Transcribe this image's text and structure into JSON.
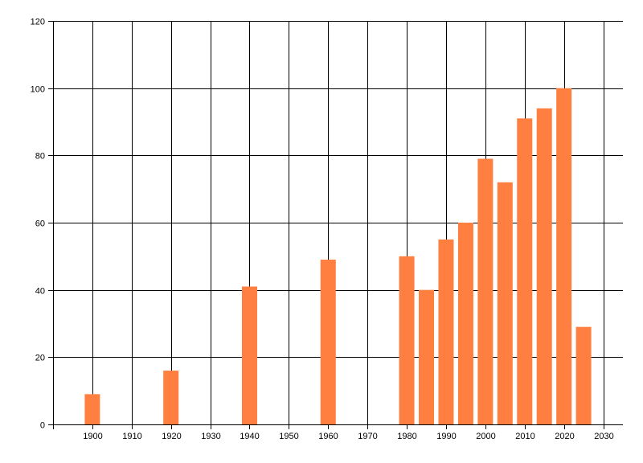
{
  "chart_data": {
    "type": "bar",
    "title": "",
    "xlabel": "",
    "ylabel": "",
    "x": [
      1900,
      1920,
      1940,
      1960,
      1980,
      1985,
      1990,
      1995,
      2000,
      2005,
      2010,
      2015,
      2020,
      2025
    ],
    "values": [
      9,
      16,
      41,
      49,
      50,
      40,
      55,
      60,
      79,
      72,
      91,
      94,
      100,
      29
    ],
    "xlim": [
      1890,
      2035
    ],
    "ylim": [
      0,
      120
    ],
    "xticks": [
      1900,
      1910,
      1920,
      1930,
      1940,
      1950,
      1960,
      1970,
      1980,
      1990,
      2000,
      2010,
      2020,
      2030
    ],
    "yticks": [
      0,
      20,
      40,
      60,
      80,
      100,
      120
    ],
    "bar_color": "#FF7F40",
    "grid": true,
    "legend": "none"
  }
}
